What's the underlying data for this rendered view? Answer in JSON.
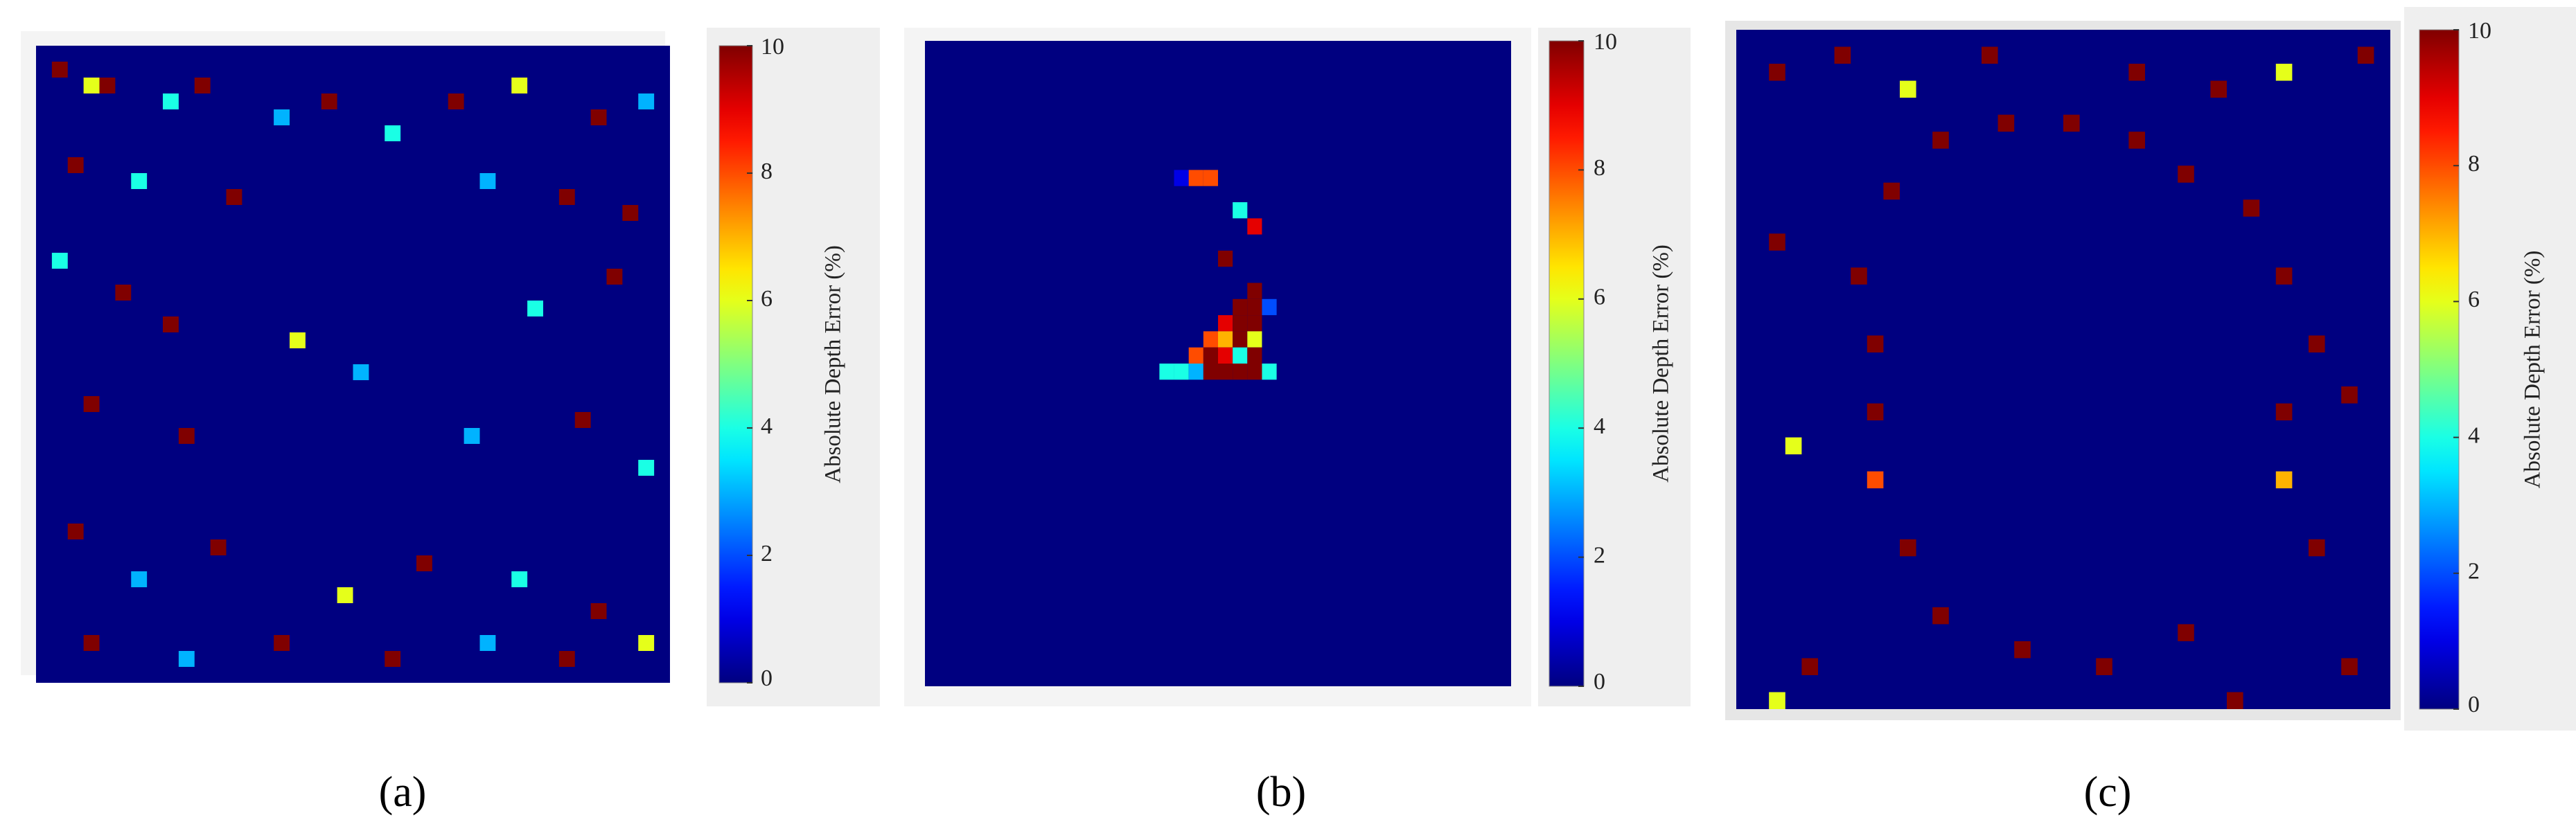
{
  "chart_data": [
    {
      "type": "heatmap",
      "caption": "(a)",
      "colorbar_label": "Absolute Depth Error (%)",
      "colormap": "jet",
      "zlim": [
        0,
        10
      ],
      "zticks": [
        0,
        2,
        4,
        6,
        8,
        10
      ],
      "xlim": [
        0,
        40
      ],
      "ylim": [
        0,
        40
      ],
      "cells": [
        [
          1,
          1,
          10
        ],
        [
          3,
          2,
          6
        ],
        [
          4,
          2,
          10
        ],
        [
          8,
          3,
          4
        ],
        [
          10,
          2,
          10
        ],
        [
          15,
          4,
          3
        ],
        [
          18,
          3,
          10
        ],
        [
          22,
          5,
          4
        ],
        [
          26,
          3,
          10
        ],
        [
          30,
          2,
          6
        ],
        [
          35,
          4,
          10
        ],
        [
          38,
          3,
          3
        ],
        [
          2,
          7,
          10
        ],
        [
          6,
          8,
          4
        ],
        [
          12,
          9,
          10
        ],
        [
          28,
          8,
          3
        ],
        [
          33,
          9,
          10
        ],
        [
          37,
          10,
          10
        ],
        [
          1,
          13,
          4
        ],
        [
          5,
          15,
          10
        ],
        [
          8,
          17,
          10
        ],
        [
          16,
          18,
          6
        ],
        [
          20,
          20,
          3
        ],
        [
          31,
          16,
          4
        ],
        [
          36,
          14,
          10
        ],
        [
          3,
          22,
          10
        ],
        [
          9,
          24,
          10
        ],
        [
          27,
          24,
          3
        ],
        [
          34,
          23,
          10
        ],
        [
          38,
          26,
          4
        ],
        [
          2,
          30,
          10
        ],
        [
          6,
          33,
          3
        ],
        [
          11,
          31,
          10
        ],
        [
          19,
          34,
          6
        ],
        [
          24,
          32,
          10
        ],
        [
          30,
          33,
          4
        ],
        [
          35,
          35,
          10
        ],
        [
          3,
          37,
          10
        ],
        [
          9,
          38,
          3
        ],
        [
          15,
          37,
          10
        ],
        [
          22,
          38,
          10
        ],
        [
          28,
          37,
          3
        ],
        [
          33,
          38,
          10
        ],
        [
          38,
          37,
          6
        ]
      ]
    },
    {
      "type": "heatmap",
      "caption": "(b)",
      "colorbar_label": "Absolute Depth Error (%)",
      "colormap": "jet",
      "zlim": [
        0,
        10
      ],
      "zticks": [
        0,
        2,
        4,
        6,
        8,
        10
      ],
      "xlim": [
        0,
        40
      ],
      "ylim": [
        0,
        40
      ],
      "cells": [
        [
          17,
          8,
          1
        ],
        [
          18,
          8,
          8
        ],
        [
          19,
          8,
          8
        ],
        [
          21,
          10,
          4
        ],
        [
          22,
          11,
          9
        ],
        [
          20,
          13,
          10
        ],
        [
          22,
          15,
          10
        ],
        [
          21,
          16,
          10
        ],
        [
          22,
          16,
          10
        ],
        [
          23,
          16,
          2
        ],
        [
          20,
          17,
          9
        ],
        [
          21,
          17,
          10
        ],
        [
          22,
          17,
          10
        ],
        [
          19,
          18,
          8
        ],
        [
          20,
          18,
          7
        ],
        [
          21,
          18,
          10
        ],
        [
          22,
          18,
          6
        ],
        [
          18,
          19,
          8
        ],
        [
          19,
          19,
          10
        ],
        [
          20,
          19,
          9
        ],
        [
          21,
          19,
          4
        ],
        [
          22,
          19,
          10
        ],
        [
          16,
          20,
          4
        ],
        [
          17,
          20,
          4
        ],
        [
          18,
          20,
          3
        ],
        [
          19,
          20,
          10
        ],
        [
          20,
          20,
          10
        ],
        [
          21,
          20,
          10
        ],
        [
          22,
          20,
          10
        ],
        [
          23,
          20,
          4
        ]
      ]
    },
    {
      "type": "heatmap",
      "caption": "(c)",
      "colorbar_label": "Absolute Depth Error (%)",
      "colormap": "jet",
      "zlim": [
        0,
        10
      ],
      "zticks": [
        0,
        2,
        4,
        6,
        8,
        10
      ],
      "xlim": [
        0,
        40
      ],
      "ylim": [
        0,
        40
      ],
      "cells": [
        [
          2,
          2,
          10
        ],
        [
          6,
          1,
          10
        ],
        [
          10,
          3,
          6
        ],
        [
          15,
          1,
          10
        ],
        [
          24,
          2,
          10
        ],
        [
          29,
          3,
          10
        ],
        [
          33,
          2,
          6
        ],
        [
          38,
          1,
          10
        ],
        [
          12,
          6,
          10
        ],
        [
          16,
          5,
          10
        ],
        [
          20,
          5,
          10
        ],
        [
          24,
          6,
          10
        ],
        [
          27,
          8,
          10
        ],
        [
          9,
          9,
          10
        ],
        [
          31,
          10,
          10
        ],
        [
          2,
          12,
          10
        ],
        [
          7,
          14,
          10
        ],
        [
          8,
          18,
          10
        ],
        [
          33,
          14,
          10
        ],
        [
          35,
          18,
          10
        ],
        [
          8,
          22,
          10
        ],
        [
          3,
          24,
          6
        ],
        [
          33,
          22,
          10
        ],
        [
          37,
          21,
          10
        ],
        [
          8,
          26,
          8
        ],
        [
          33,
          26,
          7
        ],
        [
          10,
          30,
          10
        ],
        [
          35,
          30,
          10
        ],
        [
          12,
          34,
          10
        ],
        [
          17,
          36,
          10
        ],
        [
          22,
          37,
          10
        ],
        [
          27,
          35,
          10
        ],
        [
          4,
          37,
          10
        ],
        [
          30,
          39,
          10
        ],
        [
          37,
          37,
          10
        ],
        [
          2,
          40,
          6
        ]
      ]
    }
  ]
}
